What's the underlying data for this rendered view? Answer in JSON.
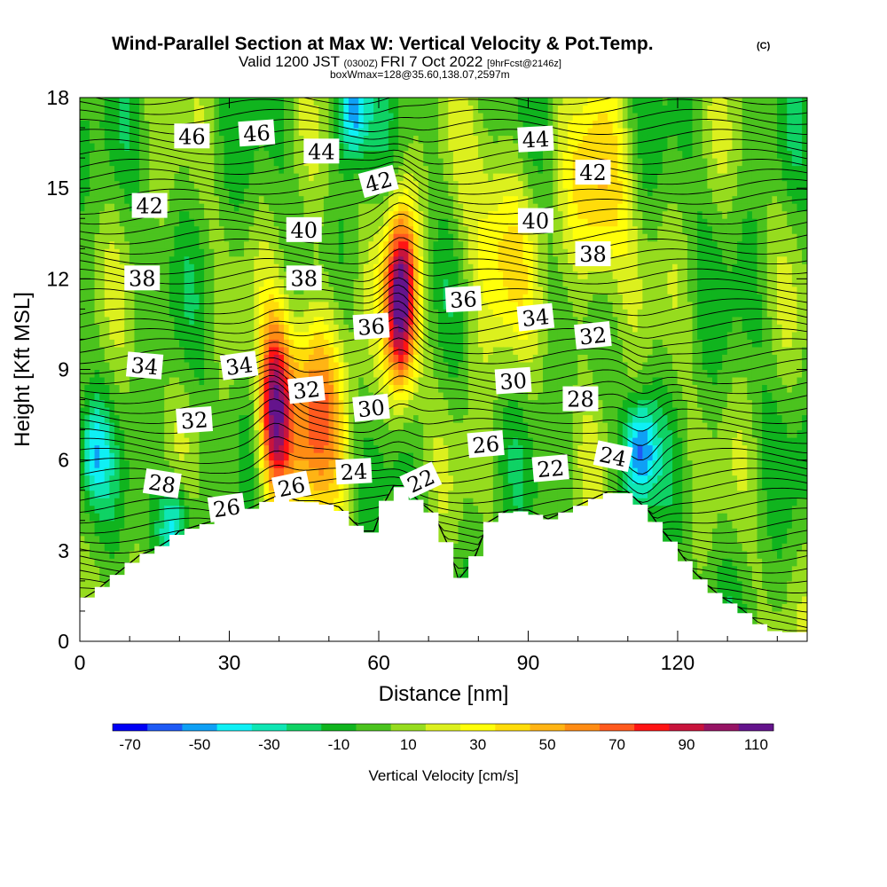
{
  "chart_data": {
    "type": "heatmap",
    "title": {
      "main": "Wind-Parallel Section at Max W: Vertical Velocity & Pot.Temp.",
      "copyright": "(C)",
      "valid_prefix": "Valid 1200 JST",
      "utc_time": "(0300Z)",
      "valid_date": "FRI 7 Oct 2022",
      "forecast": "[9hrFcst@2146z]",
      "box_info": "boxWmax=128@35.60,138.07,2597m"
    },
    "xlabel": "Distance [nm]",
    "ylabel": "Height [Kft MSL]",
    "xlim": [
      0,
      146
    ],
    "ylim": [
      0,
      18
    ],
    "x_ticks": [
      "0",
      "30",
      "60",
      "90",
      "120"
    ],
    "x_tick_values": [
      0,
      30,
      60,
      90,
      120
    ],
    "y_ticks": [
      "0",
      "3",
      "6",
      "9",
      "12",
      "15",
      "18"
    ],
    "y_tick_values": [
      0,
      3,
      6,
      9,
      12,
      15,
      18
    ],
    "colorbar": {
      "title": "Vertical Velocity [cm/s]",
      "labels": [
        "-70",
        "-50",
        "-30",
        "-10",
        "10",
        "30",
        "50",
        "70",
        "90",
        "110"
      ],
      "label_values": [
        -70,
        -50,
        -30,
        -10,
        10,
        30,
        50,
        70,
        90,
        110
      ],
      "vmin": -70,
      "vmax": 120,
      "step": 10,
      "colors": [
        "#0000f5",
        "#1e5af5",
        "#0fa0f5",
        "#0ff0f5",
        "#0fe6b4",
        "#0fd264",
        "#10b41e",
        "#4bc31e",
        "#96dc1e",
        "#dcf01e",
        "#ffff0a",
        "#ffdc0a",
        "#ffb414",
        "#ff8c14",
        "#ff5a1e",
        "#ff1414",
        "#c8143c",
        "#961464",
        "#64148c"
      ]
    },
    "terrain": [
      {
        "x": 0,
        "h": 1.3
      },
      {
        "x": 3,
        "h": 1.6
      },
      {
        "x": 6,
        "h": 2.0
      },
      {
        "x": 9,
        "h": 2.4
      },
      {
        "x": 12,
        "h": 2.8
      },
      {
        "x": 15,
        "h": 3.0
      },
      {
        "x": 18,
        "h": 3.3
      },
      {
        "x": 20,
        "h": 3.6
      },
      {
        "x": 24,
        "h": 3.8
      },
      {
        "x": 28,
        "h": 4.0
      },
      {
        "x": 32,
        "h": 4.2
      },
      {
        "x": 36,
        "h": 4.5
      },
      {
        "x": 40,
        "h": 4.8
      },
      {
        "x": 44,
        "h": 4.6
      },
      {
        "x": 48,
        "h": 4.6
      },
      {
        "x": 52,
        "h": 4.4
      },
      {
        "x": 55,
        "h": 3.9
      },
      {
        "x": 57,
        "h": 3.6
      },
      {
        "x": 59,
        "h": 3.6
      },
      {
        "x": 61,
        "h": 4.5
      },
      {
        "x": 63,
        "h": 5.1
      },
      {
        "x": 65,
        "h": 5.1
      },
      {
        "x": 68,
        "h": 4.6
      },
      {
        "x": 71,
        "h": 4.2
      },
      {
        "x": 74,
        "h": 3.1
      },
      {
        "x": 76,
        "h": 2.0
      },
      {
        "x": 79,
        "h": 2.6
      },
      {
        "x": 82,
        "h": 3.9
      },
      {
        "x": 86,
        "h": 4.3
      },
      {
        "x": 90,
        "h": 4.3
      },
      {
        "x": 94,
        "h": 4.0
      },
      {
        "x": 98,
        "h": 4.3
      },
      {
        "x": 102,
        "h": 4.6
      },
      {
        "x": 106,
        "h": 4.9
      },
      {
        "x": 110,
        "h": 4.9
      },
      {
        "x": 114,
        "h": 4.3
      },
      {
        "x": 117,
        "h": 3.6
      },
      {
        "x": 120,
        "h": 3.0
      },
      {
        "x": 123,
        "h": 2.3
      },
      {
        "x": 126,
        "h": 1.8
      },
      {
        "x": 129,
        "h": 1.4
      },
      {
        "x": 133,
        "h": 1.0
      },
      {
        "x": 136,
        "h": 0.6
      },
      {
        "x": 140,
        "h": 0.3
      },
      {
        "x": 146,
        "h": 0.3
      }
    ],
    "updraft_cores": [
      {
        "x": 64.5,
        "y": 11.3,
        "peak": 115
      },
      {
        "x": 39,
        "y": 7.5,
        "peak": 95
      },
      {
        "x": 47,
        "y": 7.8,
        "peak": 65
      },
      {
        "x": 104,
        "y": 14.5,
        "peak": 45
      },
      {
        "x": 84,
        "y": 13,
        "peak": 35
      }
    ],
    "downdraft_cores": [
      {
        "x": 112.5,
        "y": 6.3,
        "peak": -55
      },
      {
        "x": 19,
        "y": 3.9,
        "peak": -45
      },
      {
        "x": 55,
        "y": 17.6,
        "peak": -55
      },
      {
        "x": 3,
        "y": 6.2,
        "peak": -35
      }
    ],
    "contour_labels": [
      {
        "text": "46",
        "x": 22.5,
        "y": 16.7,
        "angle": 0
      },
      {
        "text": "46",
        "x": 35.5,
        "y": 16.8,
        "angle": -4
      },
      {
        "text": "44",
        "x": 48.5,
        "y": 16.2,
        "angle": 0
      },
      {
        "text": "44",
        "x": 91.5,
        "y": 16.6,
        "angle": -3
      },
      {
        "text": "42",
        "x": 14,
        "y": 14.4,
        "angle": 0
      },
      {
        "text": "42",
        "x": 60,
        "y": 15.2,
        "angle": -15
      },
      {
        "text": "42",
        "x": 103,
        "y": 15.5,
        "angle": 0
      },
      {
        "text": "40",
        "x": 45,
        "y": 13.6,
        "angle": 0
      },
      {
        "text": "40",
        "x": 91.5,
        "y": 13.9,
        "angle": 0
      },
      {
        "text": "38",
        "x": 12.5,
        "y": 12.0,
        "angle": 0
      },
      {
        "text": "38",
        "x": 45,
        "y": 12.0,
        "angle": 0
      },
      {
        "text": "38",
        "x": 103,
        "y": 12.8,
        "angle": 0
      },
      {
        "text": "36",
        "x": 58.5,
        "y": 10.4,
        "angle": -4
      },
      {
        "text": "36",
        "x": 77,
        "y": 11.3,
        "angle": -3
      },
      {
        "text": "34",
        "x": 13,
        "y": 9.1,
        "angle": 5
      },
      {
        "text": "34",
        "x": 32,
        "y": 9.1,
        "angle": -8
      },
      {
        "text": "34",
        "x": 91.5,
        "y": 10.7,
        "angle": -6
      },
      {
        "text": "32",
        "x": 45.5,
        "y": 8.3,
        "angle": -6
      },
      {
        "text": "32",
        "x": 103,
        "y": 10.1,
        "angle": -6
      },
      {
        "text": "32",
        "x": 23,
        "y": 7.3,
        "angle": -4
      },
      {
        "text": "30",
        "x": 58.5,
        "y": 7.7,
        "angle": -6
      },
      {
        "text": "30",
        "x": 87,
        "y": 8.6,
        "angle": -4
      },
      {
        "text": "28",
        "x": 100.5,
        "y": 8.0,
        "angle": 0
      },
      {
        "text": "28",
        "x": 16.5,
        "y": 5.2,
        "angle": 9
      },
      {
        "text": "26",
        "x": 81.5,
        "y": 6.5,
        "angle": -5
      },
      {
        "text": "26",
        "x": 29.5,
        "y": 4.4,
        "angle": -8
      },
      {
        "text": "26",
        "x": 42.5,
        "y": 5.1,
        "angle": -12
      },
      {
        "text": "24",
        "x": 55,
        "y": 5.6,
        "angle": -3
      },
      {
        "text": "24",
        "x": 107,
        "y": 6.1,
        "angle": 12
      },
      {
        "text": "22",
        "x": 68.5,
        "y": 5.3,
        "angle": -25
      },
      {
        "text": "22",
        "x": 94.5,
        "y": 5.7,
        "angle": -5
      }
    ]
  }
}
